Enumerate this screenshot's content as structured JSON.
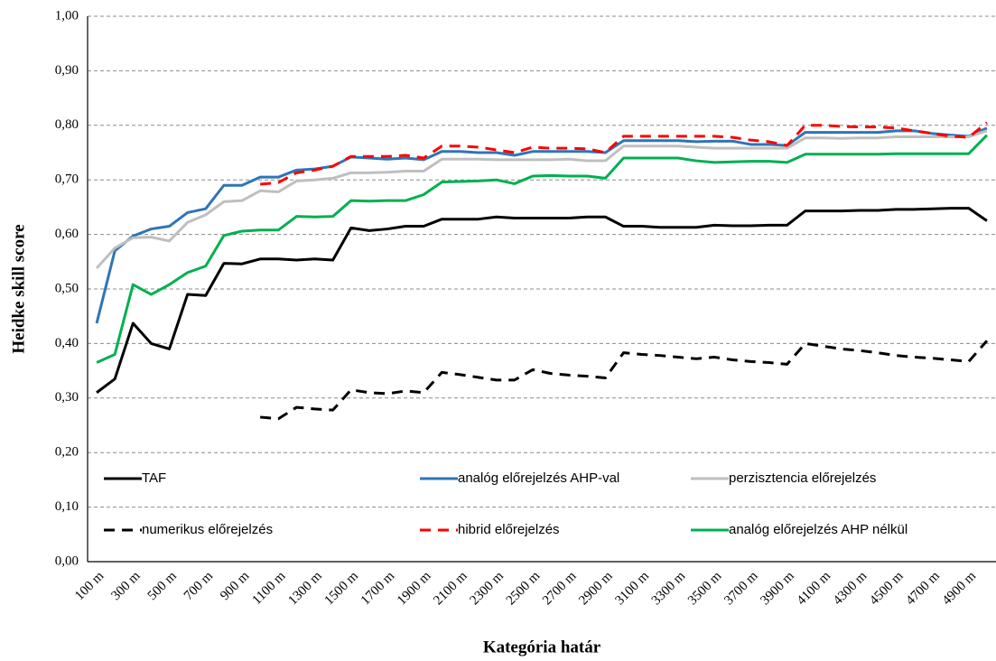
{
  "chart_data": {
    "type": "line",
    "y_label": "Heidke skill score",
    "x_label": "Kategória határ",
    "categories": [
      "100 m",
      null,
      "300 m",
      null,
      "500 m",
      null,
      "700 m",
      null,
      "900 m",
      null,
      "1100 m",
      null,
      "1300 m",
      null,
      "1500 m",
      null,
      "1700 m",
      null,
      "1900 m",
      null,
      "2100 m",
      null,
      "2300 m",
      null,
      "2500 m",
      null,
      "2700 m",
      null,
      "2900 m",
      null,
      "3100 m",
      null,
      "3300 m",
      null,
      "3500 m",
      null,
      "3700 m",
      null,
      "3900 m",
      null,
      "4100 m",
      null,
      "4300 m",
      null,
      "4500 m",
      null,
      "4700 m",
      null,
      "4900 m",
      null
    ],
    "series": [
      {
        "name": "TAF",
        "color": "#000000",
        "dashed": false,
        "values": [
          0.31,
          0.335,
          0.437,
          0.4,
          0.39,
          0.49,
          0.488,
          0.547,
          0.546,
          0.555,
          0.555,
          0.553,
          0.555,
          0.553,
          0.612,
          0.607,
          0.61,
          0.615,
          0.615,
          0.628,
          0.628,
          0.628,
          0.632,
          0.63,
          0.63,
          0.63,
          0.63,
          0.632,
          0.632,
          0.615,
          0.615,
          0.613,
          0.613,
          0.613,
          0.617,
          0.616,
          0.616,
          0.617,
          0.617,
          0.643,
          0.643,
          0.643,
          0.644,
          0.644,
          0.646,
          0.646,
          0.647,
          0.648,
          0.648,
          0.625
        ]
      },
      {
        "name": "analóg előrejelzés AHP-val",
        "color": "#2e75b6",
        "dashed": false,
        "values": [
          0.437,
          0.57,
          0.597,
          0.61,
          0.615,
          0.64,
          0.647,
          0.69,
          0.69,
          0.705,
          0.705,
          0.718,
          0.72,
          0.725,
          0.742,
          0.74,
          0.738,
          0.74,
          0.737,
          0.752,
          0.752,
          0.75,
          0.75,
          0.745,
          0.752,
          0.752,
          0.752,
          0.752,
          0.75,
          0.772,
          0.772,
          0.772,
          0.772,
          0.77,
          0.771,
          0.771,
          0.765,
          0.765,
          0.763,
          0.787,
          0.787,
          0.787,
          0.787,
          0.787,
          0.79,
          0.79,
          0.785,
          0.782,
          0.78,
          0.795
        ]
      },
      {
        "name": "perzisztencia előrejelzés",
        "color": "#bfbfbf",
        "dashed": false,
        "values": [
          0.538,
          0.575,
          0.594,
          0.595,
          0.588,
          0.622,
          0.636,
          0.66,
          0.662,
          0.68,
          0.678,
          0.698,
          0.7,
          0.703,
          0.713,
          0.713,
          0.714,
          0.716,
          0.716,
          0.738,
          0.738,
          0.738,
          0.737,
          0.737,
          0.737,
          0.737,
          0.738,
          0.735,
          0.735,
          0.762,
          0.762,
          0.762,
          0.762,
          0.76,
          0.758,
          0.758,
          0.758,
          0.758,
          0.758,
          0.777,
          0.777,
          0.776,
          0.777,
          0.777,
          0.779,
          0.779,
          0.779,
          0.779,
          0.779,
          0.79
        ]
      },
      {
        "name": "numerikus előrejelzés",
        "color": "#000000",
        "dashed": true,
        "values": [
          null,
          null,
          null,
          null,
          null,
          null,
          null,
          null,
          null,
          0.265,
          0.262,
          0.283,
          0.28,
          0.278,
          0.315,
          0.31,
          0.308,
          0.313,
          0.31,
          0.347,
          0.343,
          0.338,
          0.333,
          0.333,
          0.352,
          0.345,
          0.342,
          0.34,
          0.337,
          0.383,
          0.38,
          0.378,
          0.375,
          0.372,
          0.375,
          0.37,
          0.367,
          0.365,
          0.362,
          0.4,
          0.395,
          0.39,
          0.387,
          0.383,
          0.378,
          0.375,
          0.373,
          0.37,
          0.367,
          0.405
        ]
      },
      {
        "name": "hibrid előrejelzés",
        "color": "#ff0000",
        "dashed": true,
        "values": [
          null,
          null,
          null,
          null,
          null,
          null,
          null,
          null,
          null,
          0.692,
          0.695,
          0.713,
          0.718,
          0.725,
          0.743,
          0.743,
          0.743,
          0.745,
          0.74,
          0.762,
          0.762,
          0.76,
          0.755,
          0.75,
          0.76,
          0.758,
          0.758,
          0.757,
          0.75,
          0.78,
          0.78,
          0.78,
          0.78,
          0.78,
          0.78,
          0.778,
          0.773,
          0.77,
          0.763,
          0.8,
          0.8,
          0.798,
          0.797,
          0.797,
          0.795,
          0.79,
          0.785,
          0.78,
          0.778,
          0.805
        ]
      },
      {
        "name": "analóg előrejelzés AHP nélkül",
        "color": "#00b050",
        "dashed": false,
        "values": [
          0.365,
          0.38,
          0.508,
          0.49,
          0.508,
          0.53,
          0.542,
          0.598,
          0.606,
          0.608,
          0.608,
          0.633,
          0.632,
          0.633,
          0.662,
          0.661,
          0.662,
          0.662,
          0.673,
          0.696,
          0.697,
          0.698,
          0.7,
          0.693,
          0.707,
          0.708,
          0.707,
          0.707,
          0.703,
          0.74,
          0.74,
          0.74,
          0.74,
          0.735,
          0.732,
          0.733,
          0.734,
          0.734,
          0.732,
          0.747,
          0.747,
          0.747,
          0.747,
          0.747,
          0.748,
          0.748,
          0.748,
          0.748,
          0.748,
          0.782
        ]
      }
    ],
    "ylim": [
      0,
      1
    ],
    "yticks": [
      {
        "value": 0,
        "label": "0,00"
      },
      {
        "value": 0.1,
        "label": "0,10"
      },
      {
        "value": 0.2,
        "label": "0,20"
      },
      {
        "value": 0.3,
        "label": "0,30"
      },
      {
        "value": 0.4,
        "label": "0,40"
      },
      {
        "value": 0.5,
        "label": "0,50"
      },
      {
        "value": 0.6,
        "label": "0,60"
      },
      {
        "value": 0.7,
        "label": "0,70"
      },
      {
        "value": 0.8,
        "label": "0,80"
      },
      {
        "value": 0.9,
        "label": "0,90"
      },
      {
        "value": 1,
        "label": "1,00"
      }
    ],
    "grid": true
  }
}
